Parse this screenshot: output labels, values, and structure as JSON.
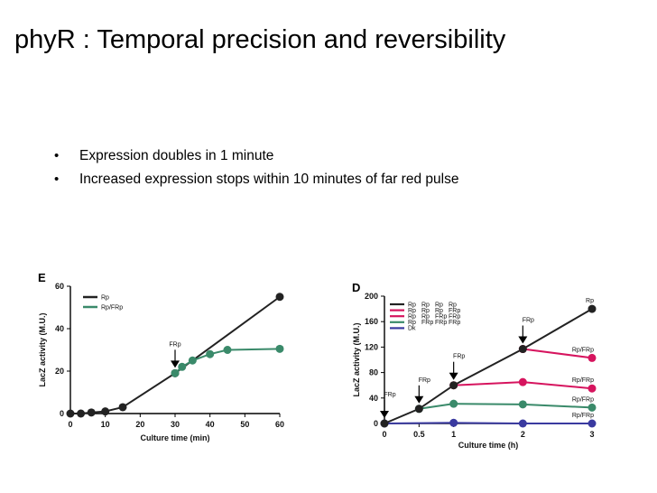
{
  "slide": {
    "title": "phyR : Temporal precision and reversibility",
    "bullets": [
      "Expression doubles in 1 minute",
      "Increased expression stops within 10 minutes of far red pulse"
    ]
  },
  "chart_data": [
    {
      "panel": "E",
      "type": "line",
      "xlabel": "Culture time (min)",
      "ylabel": "LacZ activity (M.U.)",
      "xlim": [
        0,
        60
      ],
      "ylim": [
        0,
        60
      ],
      "xticks": [
        0,
        10,
        20,
        30,
        40,
        50,
        60
      ],
      "yticks": [
        0,
        20,
        40,
        60
      ],
      "legend_placement": "top-left",
      "series": [
        {
          "name": "Rp",
          "color": "#222222",
          "x": [
            0,
            3,
            6,
            10,
            15,
            30,
            60
          ],
          "y": [
            0,
            0,
            0.5,
            1,
            3,
            19,
            55
          ]
        },
        {
          "name": "Rp/FRp",
          "color": "#3a8a6a",
          "x": [
            30,
            32,
            35,
            40,
            45,
            60
          ],
          "y": [
            19,
            22,
            25,
            28,
            30,
            30.5
          ]
        }
      ],
      "annotations": [
        {
          "text": "FRp",
          "x": 30,
          "y": 19
        }
      ]
    },
    {
      "panel": "D",
      "type": "line",
      "xlabel": "Culture time (h)",
      "ylabel": "LacZ activity (M.U.)",
      "xlim": [
        0,
        3
      ],
      "ylim": [
        0,
        200
      ],
      "xticks": [
        "0",
        "0.5",
        "1",
        "2",
        "3"
      ],
      "yticks": [
        0,
        40,
        80,
        120,
        160,
        200
      ],
      "legend_placement": "top-left",
      "legend_rows": [
        {
          "color": "#222222",
          "labels": [
            "Rp",
            "Rp",
            "Rp",
            "Rp"
          ]
        },
        {
          "color": "#d6145e",
          "labels": [
            "Rp",
            "Rp",
            "Rp",
            "FRp"
          ]
        },
        {
          "color": "#d6145e",
          "labels": [
            "Rp",
            "Rp",
            "FRp",
            "FRp"
          ]
        },
        {
          "color": "#3a8a6a",
          "labels": [
            "Rp",
            "FRp",
            "FRp",
            "FRp"
          ]
        },
        {
          "color": "#3a3aa0",
          "labels": [
            "Dk"
          ]
        }
      ],
      "series": [
        {
          "name": "Rp",
          "color": "#222222",
          "x": [
            0,
            0.5,
            1,
            2,
            3
          ],
          "y": [
            0,
            23,
            60,
            117,
            180
          ]
        },
        {
          "name": "Rp/FRp",
          "color": "#d6145e",
          "x": [
            2,
            3
          ],
          "y": [
            117,
            103
          ]
        },
        {
          "name": "Rp/FRp",
          "color": "#d6145e",
          "x": [
            1,
            2,
            3
          ],
          "y": [
            60,
            65,
            55
          ]
        },
        {
          "name": "Rp/FRp",
          "color": "#3a8a6a",
          "x": [
            0.5,
            1,
            2,
            3
          ],
          "y": [
            23,
            31,
            30,
            25
          ]
        },
        {
          "name": "Rp/FRp",
          "color": "#3a3aa0",
          "x": [
            0,
            1,
            2,
            3
          ],
          "y": [
            0,
            1,
            0,
            0
          ]
        }
      ],
      "annotations": [
        {
          "text": "FRp",
          "x": 0,
          "y": 0
        },
        {
          "text": "FRp",
          "x": 0.5,
          "y": 23
        },
        {
          "text": "FRp",
          "x": 1,
          "y": 60
        },
        {
          "text": "FRp",
          "x": 2,
          "y": 117
        }
      ]
    }
  ]
}
